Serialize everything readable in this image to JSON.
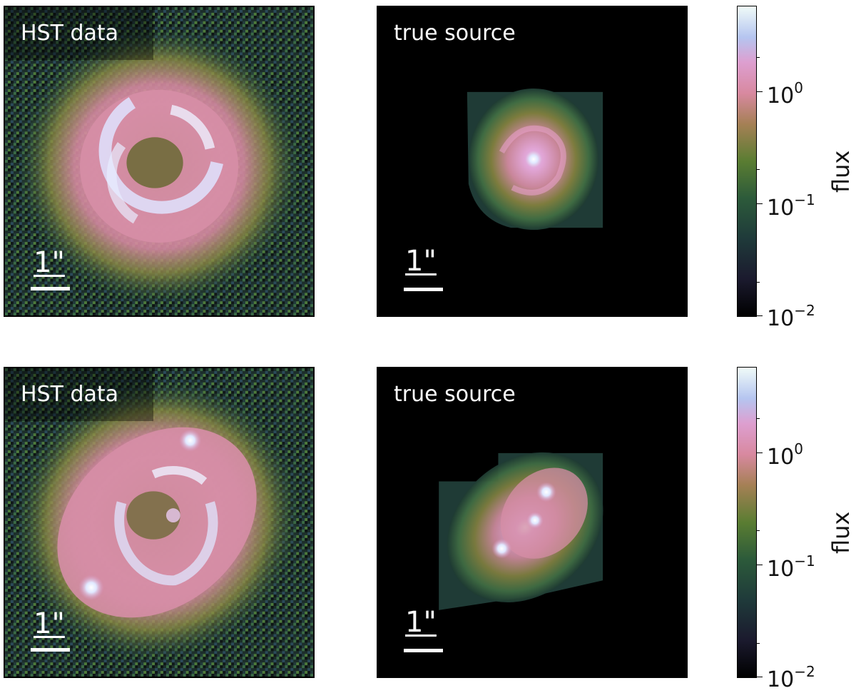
{
  "colors": {
    "background": "#000000",
    "noise": "#2f5a3f",
    "ring": "#cfa0c8",
    "arc": "#dfe6ff",
    "halo": "#5a8a3e"
  },
  "rows": [
    {
      "data_panel": {
        "label": "HST data",
        "scale": "1\""
      },
      "source_panel": {
        "label": "true source",
        "scale": "1\""
      },
      "colorbar": {
        "label": "flux",
        "ticks": [
          {
            "base": "10",
            "exp": "0"
          },
          {
            "base": "10",
            "exp": "−1"
          },
          {
            "base": "10",
            "exp": "−2"
          }
        ]
      }
    },
    {
      "data_panel": {
        "label": "HST data",
        "scale": "1\""
      },
      "source_panel": {
        "label": "true source",
        "scale": "1\""
      },
      "colorbar": {
        "label": "flux",
        "ticks": [
          {
            "base": "10",
            "exp": "0"
          },
          {
            "base": "10",
            "exp": "−1"
          },
          {
            "base": "10",
            "exp": "−2"
          }
        ]
      }
    }
  ]
}
